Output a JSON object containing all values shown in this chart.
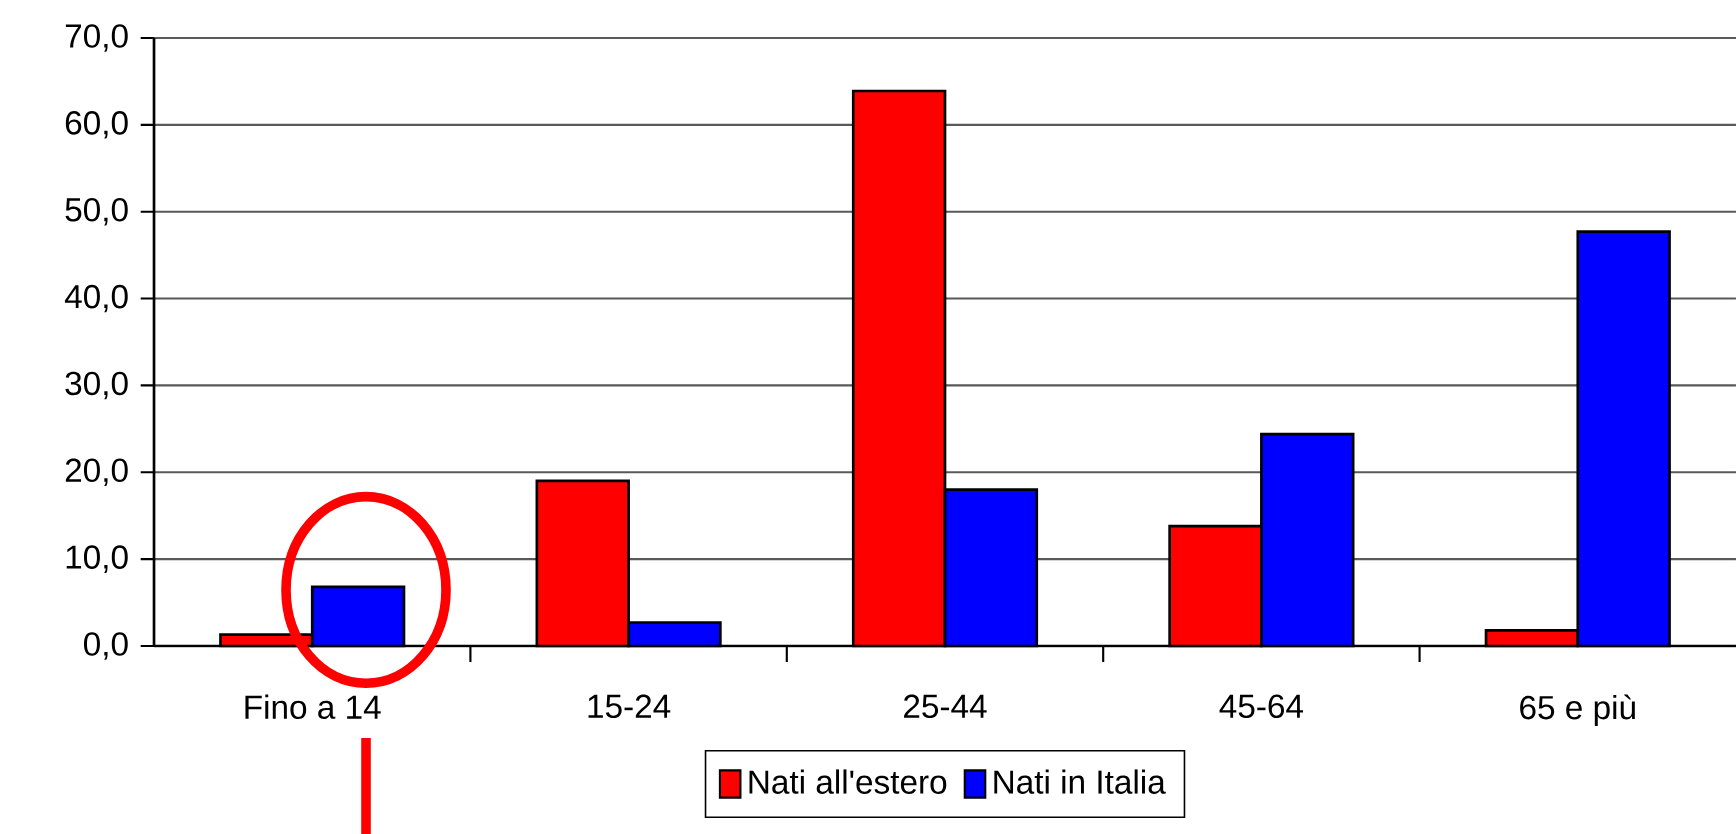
{
  "chart_data": {
    "type": "bar",
    "categories": [
      "Fino a 14",
      "15-24",
      "25-44",
      "45-64",
      "65 e più"
    ],
    "series": [
      {
        "name": "Nati all'estero",
        "color": "#ff0000",
        "values": [
          1.3,
          19.0,
          63.9,
          13.8,
          1.8
        ]
      },
      {
        "name": "Nati in Italia",
        "color": "#0000ff",
        "values": [
          6.8,
          2.7,
          18.0,
          24.4,
          47.7
        ]
      }
    ],
    "ylim": [
      0,
      70
    ],
    "yticks": [
      {
        "value": 0,
        "label": "0,0"
      },
      {
        "value": 10,
        "label": "10,0"
      },
      {
        "value": 20,
        "label": "20,0"
      },
      {
        "value": 30,
        "label": "30,0"
      },
      {
        "value": 40,
        "label": "40,0"
      },
      {
        "value": 50,
        "label": "50,0"
      },
      {
        "value": 60,
        "label": "60,0"
      },
      {
        "value": 70,
        "label": "70,0"
      }
    ],
    "grid": "y",
    "legend": "bottom"
  }
}
